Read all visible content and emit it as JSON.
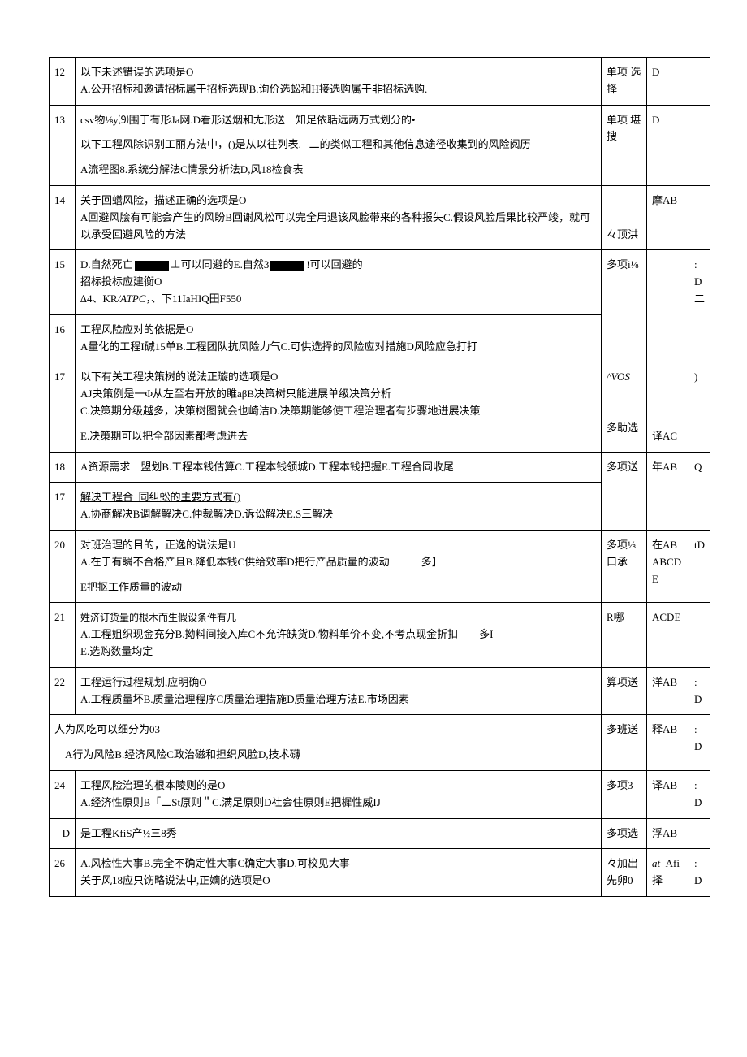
{
  "rows": [
    {
      "num": "12",
      "content_html": "以下未述错误的选项是O<br>A.公开招标和邀请招标属于招标选现B.询价选蚣和H接选购属于非招标选购.",
      "type": "单项 选择",
      "ans": "D",
      "extra": ""
    },
    {
      "num": "13",
      "content_html": "csv物⅛y⑼围于有形Ja网.D看形送烟和尢形送&nbsp;&nbsp;&nbsp;&nbsp;知足依聒远两万式划分的•<div class='gap'></div>以下工程风除识别工丽方法中，()是从以往列表.&nbsp;&nbsp;&nbsp;二的类似工程和其他信息途径收集到的风险阅历<div class='gap'></div>A流程图8.系统分解法C情景分析法D,风18检食表",
      "type": "单项 堪搜",
      "ans": "D",
      "extra": ""
    },
    {
      "num": "14",
      "content_html": "关于回蟮风险，描述正确的选项是O<br>A回避风脍有可能会产生的风盼B回谢风松可以完全用退该风脸带来的各种报失C.假设风脸后果比较严竣，就可以承受回避风险的方法",
      "type": "々顶洪",
      "ans": "摩AB",
      "extra": "",
      "type_valign": "bot"
    },
    {
      "num": "15",
      "content_html": "D.自然死亡<span class='blackbox'></span>⊥可以同避的E.自然3<span class='blackbox'></span>!可以回避的<br>招标投标应建衡O<br>∆4、KR<span class='italic'>/ATPC</span>，、下11IaHIQ田F550",
      "type": "",
      "ans": "",
      "extra": "",
      "merge_below": true
    },
    {
      "num": "16",
      "content_html": "工程风险应对的依据是O<br>A量化的工程I碱15单B.工程团队抗风险力气C.可供选择的风险应对措施D风险应急打打",
      "type": "多项i⅛",
      "ans": "",
      "extra": ": D 二"
    },
    {
      "num": "17",
      "content_html": "以下有关工程决策树的说法正璇的选项是O<br>AJ夬策例是一Φ从左至右开放的雎aβB决策树只能进展单级决策分析<br>C.决策期分级越多，决策树图就会也崎洁D.决策期能够使工程治理者有步骤地进展决策<div class='gap'></div>E.决策期可以把全部因素都考虑进去",
      "type": "<span class='italic'>^VOS</span><br><br><br>多助选",
      "ans": "译AC",
      "extra": ")",
      "ans_valign": "bot"
    },
    {
      "num": "18",
      "content_html": "A资源需求&nbsp;&nbsp;&nbsp;&nbsp;盟划B.工程本钱估算C.工程本钱领城D.工程本钱把握E.工程合同收尾",
      "type": "",
      "ans": "",
      "extra": "",
      "merge_below": true
    },
    {
      "num": "17",
      "content_html": "<span class='u'>解决工程合&nbsp;&nbsp;同纠蚣的主要方式有()</span><br>A.协商解决B调解解决C.仲裁解决D.诉讼解决E.S三解决",
      "type": "多项送",
      "ans": "年AB",
      "extra": "Q"
    },
    {
      "num": "20",
      "content_html": "对班治理的目的，正逸的说法是U<br>A.在于有瞬不合格产且B.降低本钱C供给效率D把行产品质量的波动&nbsp;&nbsp;&nbsp;&nbsp;&nbsp;&nbsp;&nbsp;&nbsp;&nbsp;&nbsp;&nbsp;&nbsp;多】<div class='gap'></div>E把抠工作质量的波动",
      "type": "多项⅛ 口承",
      "ans": "在AB ABCDE",
      "extra": "tD"
    },
    {
      "num": "21",
      "content_html": "<span style='font-size:12px'>姓济订货量的根木而生假设条件有几</span><br>A.工程姐织现金充分B.拗料间接入库C不允许缺货D.物料单价不变,不考点现金折扣&nbsp;&nbsp;&nbsp;&nbsp;&nbsp;&nbsp;&nbsp;&nbsp;多I<br>E.选购数量均定",
      "type": "R哪",
      "ans": "ACDE",
      "extra": ""
    },
    {
      "num": "22",
      "content_html": "工程运行过程规划,应明确O<br>A.工程质量坏B.质量治理程序C质量治理措施D质量治理方法E.市场因素",
      "type": "算项送",
      "ans": "洋AB",
      "extra": ": D"
    },
    {
      "num": "",
      "content_html": "人为风吃可以细分为03<div class='gap'></div>&nbsp;&nbsp;&nbsp;&nbsp;A行为风险B.经济风险C政治磁和担织风脸D,技术礴",
      "type": "多班送",
      "ans": "释AB",
      "extra": ": D",
      "full_left": true
    },
    {
      "num": "24",
      "content_html": "工程风险治理的根本陵则的是O<br>A.经济性原则B「二St原则＂C.满足原则D社会住原则E把樨性威IJ",
      "type": "多项3",
      "ans": "译AB",
      "extra": ": D"
    },
    {
      "num": "D",
      "content_html": "是工程KfiS产½三8秀",
      "type": "多项选",
      "ans": "浮AB",
      "extra": "",
      "num_align": "right"
    },
    {
      "num": "26",
      "content_html": "A.风检性大事B.完全不确定性大事C确定大事D.可校见大事<br>关于风18应只饬略说法中,正嫡的选项是O",
      "type": "々加出 先卵0",
      "ans": "<span class='italic'>at</span>&nbsp;&nbsp;Afi<br>择",
      "extra": ": D"
    }
  ]
}
